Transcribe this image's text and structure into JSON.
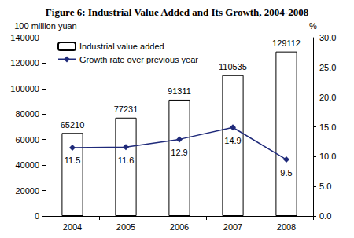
{
  "chart_data": {
    "type": "bar",
    "title": "Figure 6: Industrial Value Added and Its Growth, 2004-2008",
    "categories": [
      "2004",
      "2005",
      "2006",
      "2007",
      "2008"
    ],
    "y_label": "100 million yuan",
    "y2_label": "%",
    "ylim": [
      0,
      140000
    ],
    "yticks": [
      0,
      20000,
      40000,
      60000,
      80000,
      100000,
      120000,
      140000
    ],
    "y2lim": [
      0,
      30
    ],
    "y2ticks": [
      {
        "value": 0,
        "label": "0.0"
      },
      {
        "value": 5,
        "label": "5.0"
      },
      {
        "value": 10,
        "label": "10.0"
      },
      {
        "value": 15,
        "label": "15.0"
      },
      {
        "value": 20,
        "label": "20.0"
      },
      {
        "value": 25,
        "label": "25.0"
      },
      {
        "value": 30,
        "label": "30.0"
      }
    ],
    "grid": false,
    "legend": "upper left",
    "data_labels": true,
    "series": [
      {
        "name": "Industrial value added",
        "type": "bar",
        "color": "#ffffff",
        "values": [
          65210,
          77231,
          91311,
          110535,
          129112
        ]
      },
      {
        "name": "Growth rate over previous year",
        "type": "line",
        "color": "#1f2a7a",
        "axis": "y2",
        "marker": "diamond",
        "values": [
          11.5,
          11.6,
          12.9,
          14.9,
          9.5
        ]
      }
    ]
  }
}
